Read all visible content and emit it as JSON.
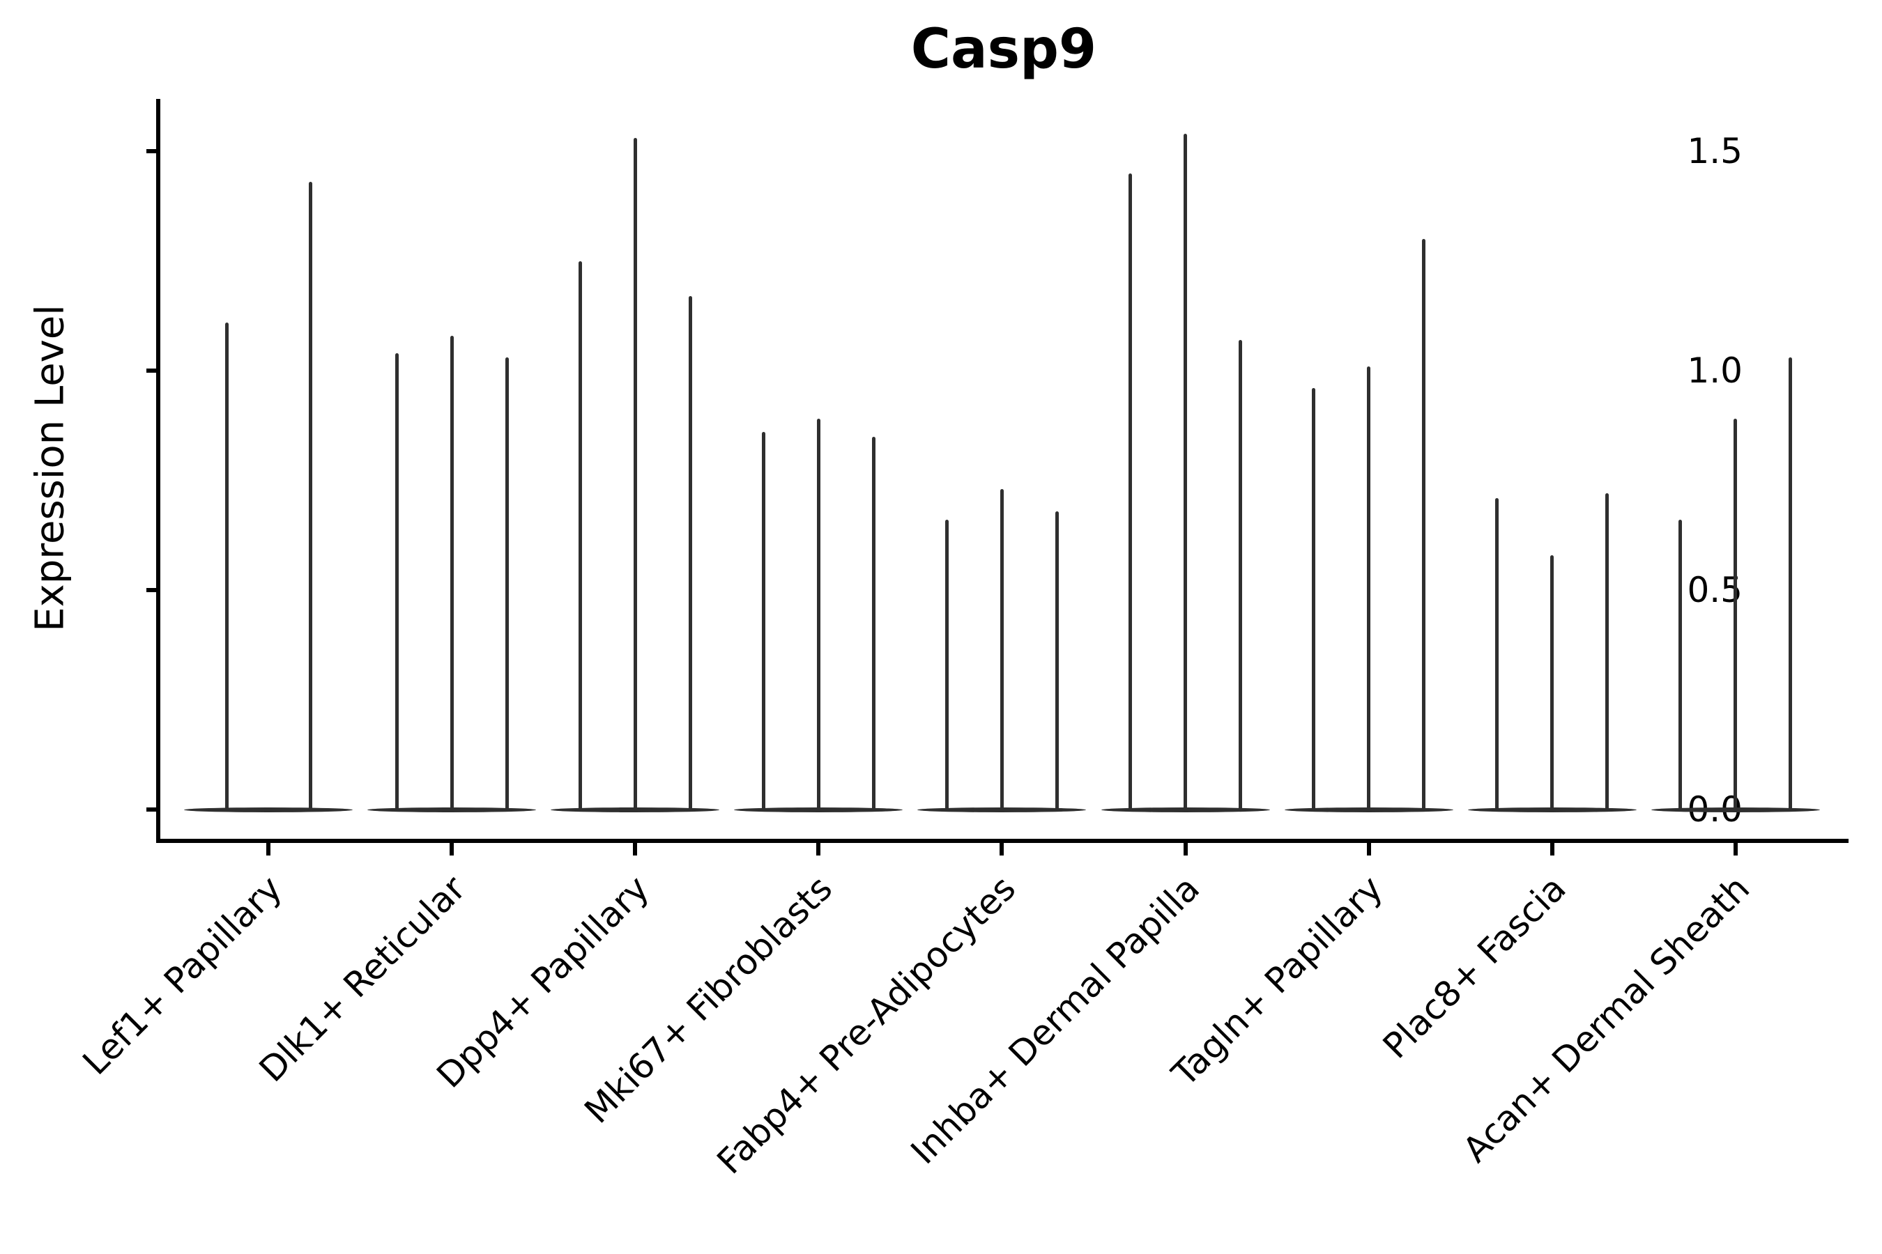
{
  "chart_data": {
    "type": "violin",
    "title": "Casp9",
    "xlabel": "",
    "ylabel": "Expression Level",
    "grid": false,
    "legend": "none",
    "violin_color": "#2f2f2f",
    "axis_color": "#000000",
    "background_color": "#ffffff",
    "ylim": [
      -0.08,
      1.62
    ],
    "ytick_values": [
      0.0,
      0.5,
      1.0,
      1.5
    ],
    "ytick_labels": [
      "0.0",
      "0.5",
      "1.0",
      "1.5"
    ],
    "x_tick_rotation_degrees": 45,
    "categories": [
      "Lef1+ Papillary",
      "Dlk1+ Reticular",
      "Dpp4+ Papillary",
      "Mki67+ Fibroblasts",
      "Fabp4+ Pre-Adipocytes",
      "Inhba+ Dermal Papilla",
      "Tagln+ Papillary",
      "Plac8+ Fascia",
      "Acan+ Dermal Sheath"
    ],
    "description": "Narrow spike violins rising from a flat dense base at expression 0; values below are the peak (max) expression level of each violin within each category group",
    "groups": [
      {
        "category": "Lef1+ Papillary",
        "violin_max_values": [
          1.11,
          1.43
        ]
      },
      {
        "category": "Dlk1+ Reticular",
        "violin_max_values": [
          1.04,
          1.08,
          1.03
        ]
      },
      {
        "category": "Dpp4+ Papillary",
        "violin_max_values": [
          1.25,
          1.53,
          1.17
        ]
      },
      {
        "category": "Mki67+ Fibroblasts",
        "violin_max_values": [
          0.86,
          0.89,
          0.85
        ]
      },
      {
        "category": "Fabp4+ Pre-Adipocytes",
        "violin_max_values": [
          0.66,
          0.73,
          0.68
        ]
      },
      {
        "category": "Inhba+ Dermal Papilla",
        "violin_max_values": [
          1.45,
          1.54,
          1.07
        ]
      },
      {
        "category": "Tagln+ Papillary",
        "violin_max_values": [
          0.96,
          1.01,
          1.3
        ]
      },
      {
        "category": "Plac8+ Fascia",
        "violin_max_values": [
          0.71,
          0.58,
          0.72
        ]
      },
      {
        "category": "Acan+ Dermal Sheath",
        "violin_max_values": [
          0.66,
          0.89,
          1.03
        ]
      }
    ]
  }
}
